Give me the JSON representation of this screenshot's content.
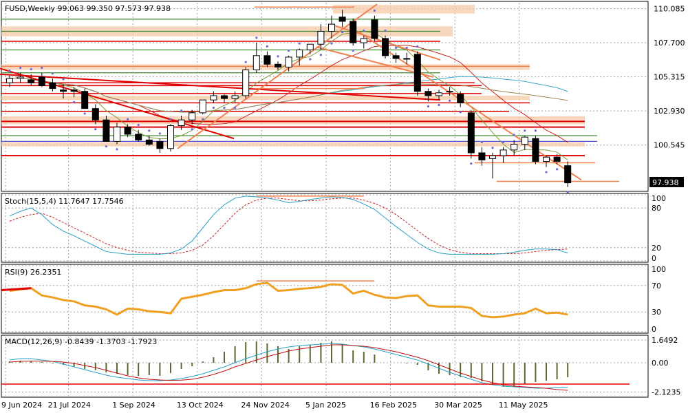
{
  "chart_data": {
    "type": "candlestick",
    "symbol_header": "FUSD,Weekly  99.063 99.350 97.573 97.938",
    "current_price_label": "97.938",
    "price_axis": {
      "ticks": [
        "110.085",
        "107.700",
        "105.315",
        "102.930",
        "100.545",
        "97.938"
      ],
      "tick_values": [
        110.085,
        107.7,
        105.315,
        102.93,
        100.545,
        97.938
      ],
      "ylim": [
        97.4,
        110.5
      ]
    },
    "x_tick_labels": [
      "9 Jun 2024",
      "21 Jul 2024",
      "1 Sep 2024",
      "13 Oct 2024",
      "24 Nov 2024",
      "5 Jan 2025",
      "16 Feb 2025",
      "30 Mar 2025",
      "11 May 2025"
    ],
    "candles": [
      {
        "o": 104.9,
        "h": 105.4,
        "l": 104.6,
        "c": 105.2
      },
      {
        "o": 105.2,
        "h": 105.6,
        "l": 104.9,
        "c": 105.3
      },
      {
        "o": 105.1,
        "h": 105.5,
        "l": 104.7,
        "c": 104.9
      },
      {
        "o": 105.3,
        "h": 105.6,
        "l": 104.6,
        "c": 104.7
      },
      {
        "o": 104.9,
        "h": 105.2,
        "l": 104.3,
        "c": 104.5
      },
      {
        "o": 104.4,
        "h": 104.8,
        "l": 103.8,
        "c": 104.3
      },
      {
        "o": 104.4,
        "h": 104.6,
        "l": 103.9,
        "c": 104.3
      },
      {
        "o": 104.3,
        "h": 104.5,
        "l": 103.1,
        "c": 103.1
      },
      {
        "o": 103.1,
        "h": 103.4,
        "l": 102.0,
        "c": 102.3
      },
      {
        "o": 102.3,
        "h": 102.6,
        "l": 100.8,
        "c": 100.8
      },
      {
        "o": 100.8,
        "h": 102.1,
        "l": 100.6,
        "c": 101.8
      },
      {
        "o": 101.8,
        "h": 102.0,
        "l": 101.1,
        "c": 101.3
      },
      {
        "o": 101.3,
        "h": 101.6,
        "l": 100.8,
        "c": 100.9
      },
      {
        "o": 100.9,
        "h": 101.2,
        "l": 100.5,
        "c": 100.6
      },
      {
        "o": 100.8,
        "h": 101.0,
        "l": 100.0,
        "c": 100.3
      },
      {
        "o": 100.3,
        "h": 102.0,
        "l": 100.1,
        "c": 101.9
      },
      {
        "o": 101.9,
        "h": 102.6,
        "l": 101.6,
        "c": 102.3
      },
      {
        "o": 102.3,
        "h": 103.0,
        "l": 102.0,
        "c": 102.8
      },
      {
        "o": 102.8,
        "h": 103.7,
        "l": 102.7,
        "c": 103.7
      },
      {
        "o": 103.7,
        "h": 104.3,
        "l": 103.5,
        "c": 104.0
      },
      {
        "o": 104.0,
        "h": 104.1,
        "l": 103.5,
        "c": 103.8
      },
      {
        "o": 103.8,
        "h": 104.3,
        "l": 103.5,
        "c": 104.0
      },
      {
        "o": 104.0,
        "h": 106.0,
        "l": 103.8,
        "c": 105.8
      },
      {
        "o": 105.8,
        "h": 107.7,
        "l": 105.6,
        "c": 106.8
      },
      {
        "o": 106.8,
        "h": 107.1,
        "l": 106.0,
        "c": 106.2
      },
      {
        "o": 106.2,
        "h": 106.4,
        "l": 105.8,
        "c": 106.0
      },
      {
        "o": 106.0,
        "h": 106.8,
        "l": 105.7,
        "c": 106.7
      },
      {
        "o": 106.7,
        "h": 107.3,
        "l": 106.1,
        "c": 107.2
      },
      {
        "o": 107.2,
        "h": 107.6,
        "l": 106.9,
        "c": 107.6
      },
      {
        "o": 107.6,
        "h": 109.0,
        "l": 107.2,
        "c": 108.5
      },
      {
        "o": 108.5,
        "h": 109.6,
        "l": 108.0,
        "c": 109.0
      },
      {
        "o": 109.5,
        "h": 110.0,
        "l": 108.8,
        "c": 109.2
      },
      {
        "o": 109.2,
        "h": 109.4,
        "l": 107.5,
        "c": 107.7
      },
      {
        "o": 107.7,
        "h": 108.2,
        "l": 107.3,
        "c": 108.0
      },
      {
        "o": 109.3,
        "h": 109.6,
        "l": 107.8,
        "c": 108.0
      },
      {
        "o": 108.0,
        "h": 108.2,
        "l": 106.6,
        "c": 106.8
      },
      {
        "o": 106.8,
        "h": 107.0,
        "l": 106.3,
        "c": 106.6
      },
      {
        "o": 106.6,
        "h": 107.0,
        "l": 106.2,
        "c": 106.6
      },
      {
        "o": 106.9,
        "h": 107.1,
        "l": 104.0,
        "c": 104.3
      },
      {
        "o": 104.3,
        "h": 104.5,
        "l": 103.6,
        "c": 104.0
      },
      {
        "o": 104.0,
        "h": 104.4,
        "l": 103.7,
        "c": 104.2
      },
      {
        "o": 104.3,
        "h": 104.6,
        "l": 104.0,
        "c": 104.3
      },
      {
        "o": 104.1,
        "h": 104.3,
        "l": 103.2,
        "c": 103.5
      },
      {
        "o": 102.8,
        "h": 103.0,
        "l": 99.6,
        "c": 100.0
      },
      {
        "o": 100.0,
        "h": 100.4,
        "l": 99.1,
        "c": 99.5
      },
      {
        "o": 99.6,
        "h": 100.0,
        "l": 98.2,
        "c": 99.8
      },
      {
        "o": 99.8,
        "h": 100.4,
        "l": 99.3,
        "c": 100.2
      },
      {
        "o": 100.2,
        "h": 100.9,
        "l": 99.8,
        "c": 100.6
      },
      {
        "o": 100.6,
        "h": 101.2,
        "l": 100.2,
        "c": 101.1
      },
      {
        "o": 101.0,
        "h": 101.2,
        "l": 99.2,
        "c": 99.4
      },
      {
        "o": 99.4,
        "h": 99.8,
        "l": 99.0,
        "c": 99.7
      },
      {
        "o": 99.7,
        "h": 99.9,
        "l": 99.2,
        "c": 99.4
      },
      {
        "o": 99.1,
        "h": 99.4,
        "l": 97.6,
        "c": 97.9
      }
    ],
    "stochastic": {
      "label": "Stoch(15,5,4) 11.7647 17.7546",
      "ticks": [
        "100",
        "80",
        "20",
        "0"
      ],
      "tick_values": [
        100,
        80,
        20,
        0
      ],
      "main": [
        68,
        75,
        80,
        70,
        55,
        45,
        38,
        30,
        22,
        14,
        12,
        10,
        10,
        10,
        10,
        12,
        18,
        30,
        50,
        70,
        85,
        95,
        98,
        97,
        95,
        92,
        88,
        90,
        93,
        95,
        97,
        96,
        93,
        86,
        78,
        65,
        52,
        40,
        28,
        18,
        12,
        10,
        10,
        10,
        10,
        10,
        11,
        13,
        16,
        18,
        18,
        17,
        12
      ],
      "signal": [
        60,
        66,
        70,
        72,
        66,
        58,
        50,
        42,
        34,
        26,
        20,
        16,
        13,
        12,
        11,
        11,
        12,
        16,
        24,
        38,
        55,
        72,
        85,
        92,
        95,
        95,
        93,
        91,
        91,
        92,
        94,
        95,
        95,
        92,
        87,
        80,
        70,
        58,
        46,
        34,
        24,
        17,
        13,
        11,
        11,
        11,
        11,
        11,
        12,
        14,
        16,
        17,
        18
      ]
    },
    "rsi": {
      "label": "RSI(9) 26.2351",
      "ticks": [
        "100",
        "70",
        "30",
        "0"
      ],
      "tick_values": [
        100,
        70,
        30,
        0
      ],
      "values": [
        62,
        64,
        66,
        55,
        52,
        48,
        46,
        40,
        38,
        34,
        26,
        35,
        34,
        31,
        30,
        28,
        50,
        53,
        56,
        60,
        63,
        63,
        66,
        72,
        74,
        62,
        63,
        65,
        66,
        68,
        72,
        71,
        58,
        62,
        56,
        52,
        51,
        54,
        55,
        40,
        38,
        38,
        38,
        36,
        24,
        22,
        23,
        26,
        28,
        35,
        28,
        29,
        26
      ]
    },
    "macd": {
      "label": "MACD(12,26,9) -0.8439 -1.3703 -1.7923",
      "ticks": [
        "1.6492",
        "0.00",
        "-2.1235"
      ],
      "tick_values": [
        1.6492,
        0.0,
        -2.1235
      ],
      "histogram": [
        0.1,
        0.15,
        0.1,
        0.05,
        -0.05,
        -0.15,
        -0.3,
        -0.45,
        -0.55,
        -0.7,
        -0.8,
        -0.9,
        -0.95,
        -0.9,
        -0.95,
        -0.75,
        -0.45,
        -0.25,
        0.1,
        0.4,
        0.8,
        1.2,
        1.5,
        1.55,
        1.4,
        1.2,
        1.0,
        1.2,
        1.3,
        1.45,
        1.55,
        1.3,
        0.9,
        0.8,
        0.6,
        0.0,
        0.0,
        -0.05,
        -0.15,
        -0.55,
        -0.8,
        -0.9,
        -1.05,
        -1.1,
        -1.35,
        -1.6,
        -1.75,
        -1.7,
        -1.55,
        -1.4,
        -1.3,
        -1.2,
        -1.05
      ],
      "main": [
        0.2,
        0.3,
        0.3,
        0.2,
        0.1,
        -0.1,
        -0.3,
        -0.5,
        -0.7,
        -0.9,
        -1.05,
        -1.15,
        -1.25,
        -1.3,
        -1.3,
        -1.25,
        -1.15,
        -1.0,
        -0.8,
        -0.55,
        -0.3,
        0.0,
        0.3,
        0.55,
        0.8,
        1.0,
        1.15,
        1.25,
        1.3,
        1.35,
        1.4,
        1.35,
        1.25,
        1.15,
        1.0,
        0.8,
        0.6,
        0.4,
        0.2,
        -0.1,
        -0.4,
        -0.7,
        -0.95,
        -1.2,
        -1.45,
        -1.6,
        -1.7,
        -1.75,
        -1.8,
        -1.85,
        -1.85,
        -1.8,
        -1.79
      ],
      "signal": [
        0.05,
        0.1,
        0.12,
        0.12,
        0.1,
        0.05,
        -0.05,
        -0.2,
        -0.35,
        -0.55,
        -0.75,
        -0.95,
        -1.1,
        -1.2,
        -1.25,
        -1.28,
        -1.26,
        -1.2,
        -1.05,
        -0.85,
        -0.6,
        -0.3,
        -0.05,
        0.2,
        0.45,
        0.65,
        0.85,
        1.0,
        1.1,
        1.2,
        1.3,
        1.3,
        1.25,
        1.2,
        1.1,
        0.95,
        0.8,
        0.6,
        0.4,
        0.15,
        -0.15,
        -0.45,
        -0.75,
        -1.0,
        -1.25,
        -1.45,
        -1.6,
        -1.7,
        -1.75,
        -1.8,
        -1.85,
        -1.95,
        -2.0
      ]
    },
    "colors": {
      "bull_body": "#ffffff",
      "bear_body": "#000000",
      "candle_outline": "#000000",
      "ma_fast": "#7a9b3a",
      "ma_mid": "#cc2222",
      "ma_slow": "#3aa8c8",
      "resistance_red": "#e00000",
      "support_green": "#3c8a2e",
      "zone_peach": "#f5c9a5",
      "trend_orange": "#f08050",
      "stoch_main": "#28a0c8",
      "stoch_signal": "#d02020",
      "rsi_line": "#f0a020",
      "macd_hist": "#556b2f",
      "macd_main": "#28a0c8",
      "macd_signal": "#c01010",
      "sar_dots": "#6a6ad8",
      "grid": "#a0a0a0"
    }
  }
}
